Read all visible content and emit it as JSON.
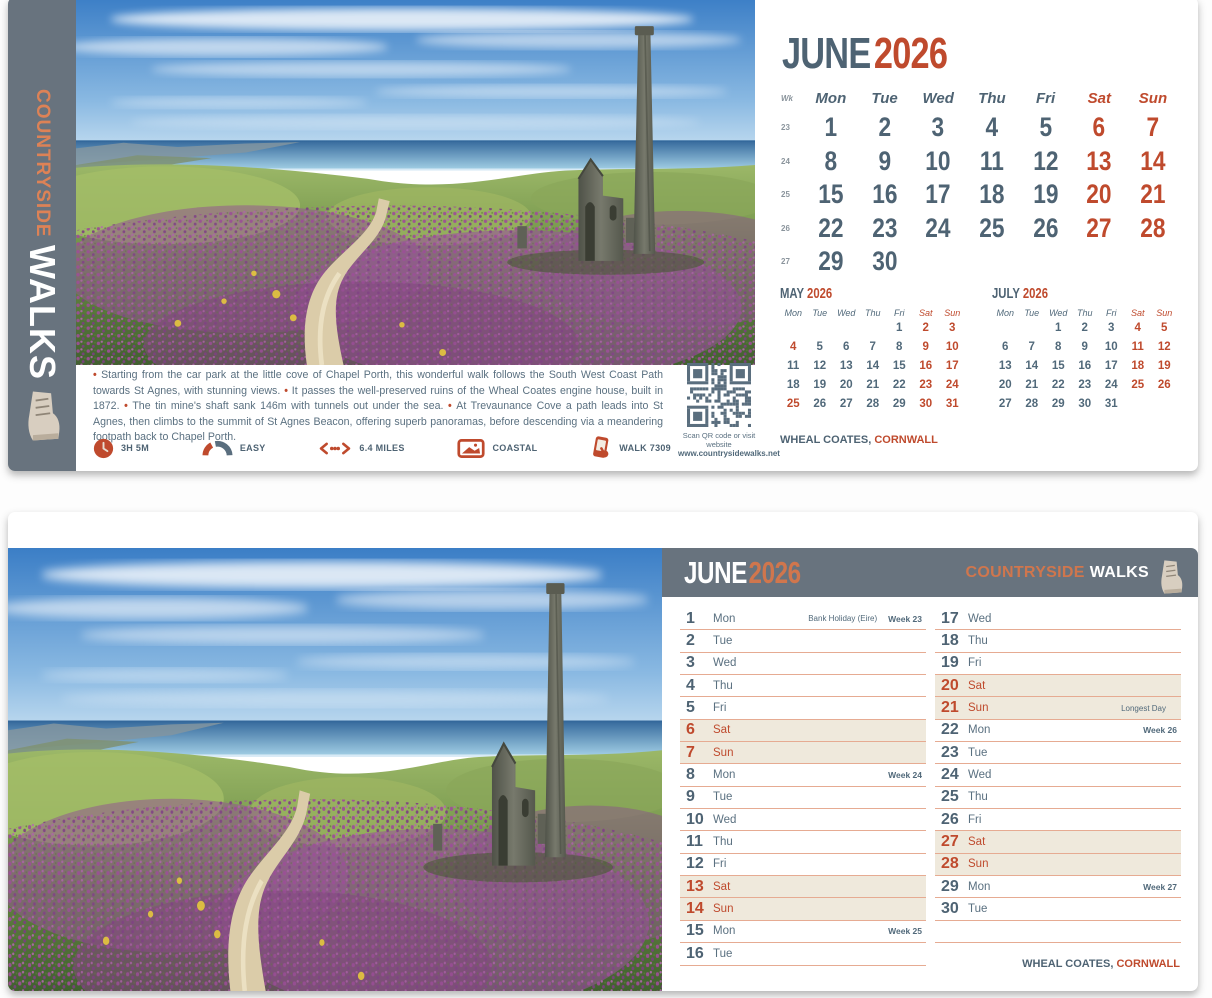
{
  "brand": {
    "line1": "COUNTRYSIDE",
    "line2": "WALKS"
  },
  "month": {
    "name": "JUNE",
    "year": "2026"
  },
  "location": {
    "place": "WHEAL COATES,",
    "region": "CORNWALL"
  },
  "colors": {
    "slate": "#68737e",
    "red": "#bf4a2d",
    "orange": "#d0764d",
    "text_blue_gray": "#4e6373",
    "weekend_bg": "#efe9dc",
    "separator": "#e6ab92"
  },
  "grid_calendar": {
    "wk_label": "Wk",
    "day_headers": [
      "Mon",
      "Tue",
      "Wed",
      "Thu",
      "Fri",
      "Sat",
      "Sun"
    ],
    "weeks": [
      {
        "wk": "23",
        "days": [
          "1",
          "2",
          "3",
          "4",
          "5",
          "6",
          "7"
        ]
      },
      {
        "wk": "24",
        "days": [
          "8",
          "9",
          "10",
          "11",
          "12",
          "13",
          "14"
        ]
      },
      {
        "wk": "25",
        "days": [
          "15",
          "16",
          "17",
          "18",
          "19",
          "20",
          "21"
        ]
      },
      {
        "wk": "26",
        "days": [
          "22",
          "23",
          "24",
          "25",
          "26",
          "27",
          "28"
        ]
      },
      {
        "wk": "27",
        "days": [
          "29",
          "30",
          "",
          "",
          "",
          "",
          ""
        ]
      }
    ]
  },
  "mini_calendars": [
    {
      "month": "MAY",
      "year": "2026",
      "day_headers": [
        "Mon",
        "Tue",
        "Wed",
        "Thu",
        "Fri",
        "Sat",
        "Sun"
      ],
      "rows": [
        [
          "",
          "",
          "",
          "",
          "1",
          "2",
          "3"
        ],
        [
          "4",
          "5",
          "6",
          "7",
          "8",
          "9",
          "10"
        ],
        [
          "11",
          "12",
          "13",
          "14",
          "15",
          "16",
          "17"
        ],
        [
          "18",
          "19",
          "20",
          "21",
          "22",
          "23",
          "24"
        ],
        [
          "25",
          "26",
          "27",
          "28",
          "29",
          "30",
          "31"
        ]
      ],
      "red_days": [
        2,
        3,
        4,
        9,
        10,
        16,
        17,
        23,
        24,
        25,
        30,
        31
      ]
    },
    {
      "month": "JULY",
      "year": "2026",
      "day_headers": [
        "Mon",
        "Tue",
        "Wed",
        "Thu",
        "Fri",
        "Sat",
        "Sun"
      ],
      "rows": [
        [
          "",
          "",
          "1",
          "2",
          "3",
          "4",
          "5"
        ],
        [
          "6",
          "7",
          "8",
          "9",
          "10",
          "11",
          "12"
        ],
        [
          "13",
          "14",
          "15",
          "16",
          "17",
          "18",
          "19"
        ],
        [
          "20",
          "21",
          "22",
          "23",
          "24",
          "25",
          "26"
        ],
        [
          "27",
          "28",
          "29",
          "30",
          "31",
          "",
          ""
        ]
      ],
      "red_days": [
        4,
        5,
        11,
        12,
        18,
        19,
        25,
        26
      ]
    }
  ],
  "walk": {
    "description": [
      "Starting from the car park at the little cove of Chapel Porth, this wonderful walk follows the South West Coast Path towards St Agnes, with stunning views.",
      "It passes the well-preserved ruins of the Wheal Coates engine house, built in 1872.",
      "The tin mine's shaft sank 146m with tunnels out under the sea.",
      "At Trevaunance Cove a path leads into St Agnes, then climbs to the summit of St Agnes Beacon, offering superb panoramas, before descending via a meandering footpath back to Chapel Porth."
    ],
    "stats": [
      {
        "icon": "clock-icon",
        "label": "3H 5M"
      },
      {
        "icon": "gauge-icon",
        "label": "EASY"
      },
      {
        "icon": "distance-icon",
        "label": "6.4 MILES"
      },
      {
        "icon": "landscape-icon",
        "label": "COASTAL"
      },
      {
        "icon": "phone-icon",
        "label": "WALK 7309"
      }
    ],
    "qr_caption_1": "Scan QR code or visit website",
    "qr_caption_2": "www.countrysidewalks.net"
  },
  "day_list": {
    "days": [
      {
        "num": "1",
        "name": "Mon",
        "note": "Bank Holiday (Eire)",
        "week": "Week 23"
      },
      {
        "num": "2",
        "name": "Tue"
      },
      {
        "num": "3",
        "name": "Wed"
      },
      {
        "num": "4",
        "name": "Thu"
      },
      {
        "num": "5",
        "name": "Fri"
      },
      {
        "num": "6",
        "name": "Sat"
      },
      {
        "num": "7",
        "name": "Sun"
      },
      {
        "num": "8",
        "name": "Mon",
        "week": "Week 24"
      },
      {
        "num": "9",
        "name": "Tue"
      },
      {
        "num": "10",
        "name": "Wed"
      },
      {
        "num": "11",
        "name": "Thu"
      },
      {
        "num": "12",
        "name": "Fri"
      },
      {
        "num": "13",
        "name": "Sat"
      },
      {
        "num": "14",
        "name": "Sun"
      },
      {
        "num": "15",
        "name": "Mon",
        "week": "Week 25"
      },
      {
        "num": "16",
        "name": "Tue"
      },
      {
        "num": "17",
        "name": "Wed"
      },
      {
        "num": "18",
        "name": "Thu"
      },
      {
        "num": "19",
        "name": "Fri"
      },
      {
        "num": "20",
        "name": "Sat"
      },
      {
        "num": "21",
        "name": "Sun",
        "note": "Longest Day"
      },
      {
        "num": "22",
        "name": "Mon",
        "week": "Week 26"
      },
      {
        "num": "23",
        "name": "Tue"
      },
      {
        "num": "24",
        "name": "Wed"
      },
      {
        "num": "25",
        "name": "Thu"
      },
      {
        "num": "26",
        "name": "Fri"
      },
      {
        "num": "27",
        "name": "Sat"
      },
      {
        "num": "28",
        "name": "Sun"
      },
      {
        "num": "29",
        "name": "Mon",
        "week": "Week 27"
      },
      {
        "num": "30",
        "name": "Tue"
      }
    ]
  }
}
